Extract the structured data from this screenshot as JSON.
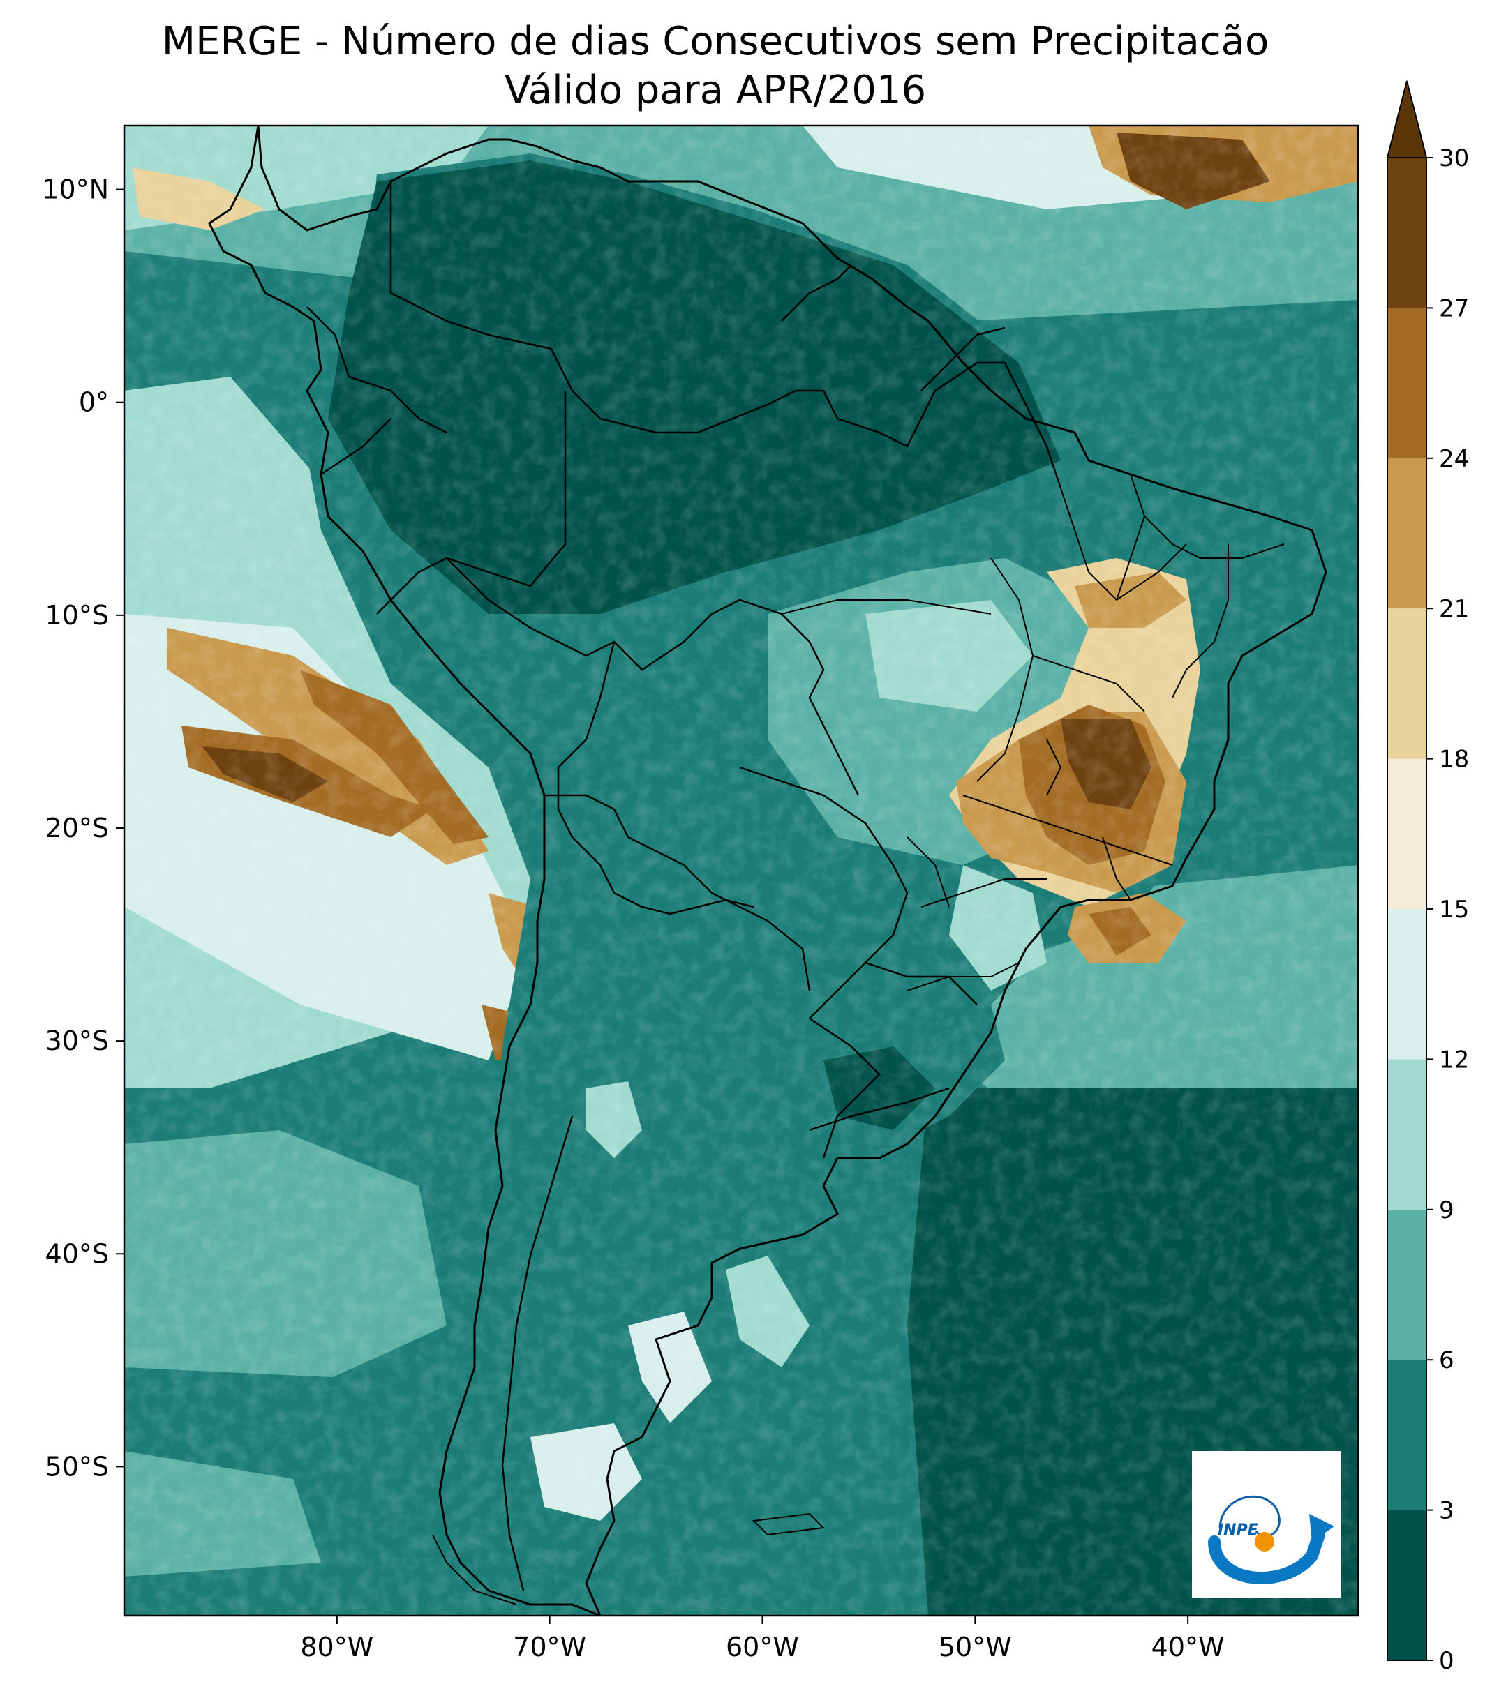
{
  "title": {
    "line1": "MERGE - Número de dias Consecutivos sem Precipitacão",
    "line2": "Válido para APR/2016"
  },
  "map": {
    "extent": {
      "lon_min": -90,
      "lon_max": -32,
      "lat_min": -57,
      "lat_max": 13
    },
    "lon_ticks": [
      {
        "value": -80,
        "label": "80°W"
      },
      {
        "value": -70,
        "label": "70°W"
      },
      {
        "value": -60,
        "label": "60°W"
      },
      {
        "value": -50,
        "label": "50°W"
      },
      {
        "value": -40,
        "label": "40°W"
      }
    ],
    "lat_ticks": [
      {
        "value": 10,
        "label": "10°N"
      },
      {
        "value": 0,
        "label": "0°"
      },
      {
        "value": -10,
        "label": "10°S"
      },
      {
        "value": -20,
        "label": "20°S"
      },
      {
        "value": -30,
        "label": "30°S"
      },
      {
        "value": -40,
        "label": "40°S"
      },
      {
        "value": -50,
        "label": "50°S"
      }
    ]
  },
  "colorbar": {
    "levels": [
      0,
      3,
      6,
      9,
      12,
      15,
      18,
      21,
      24,
      27,
      30
    ],
    "colors": [
      "#01524a",
      "#1c7d77",
      "#5bb1a6",
      "#a1dbd0",
      "#d8efec",
      "#f5ecd8",
      "#e9d29b",
      "#c99a4d",
      "#a36b23",
      "#6e4110"
    ],
    "extend_color": "#5b3608",
    "tick_labels": [
      "0",
      "3",
      "6",
      "9",
      "12",
      "15",
      "18",
      "21",
      "24",
      "27",
      "30"
    ]
  },
  "logo": {
    "text": "INPE"
  }
}
